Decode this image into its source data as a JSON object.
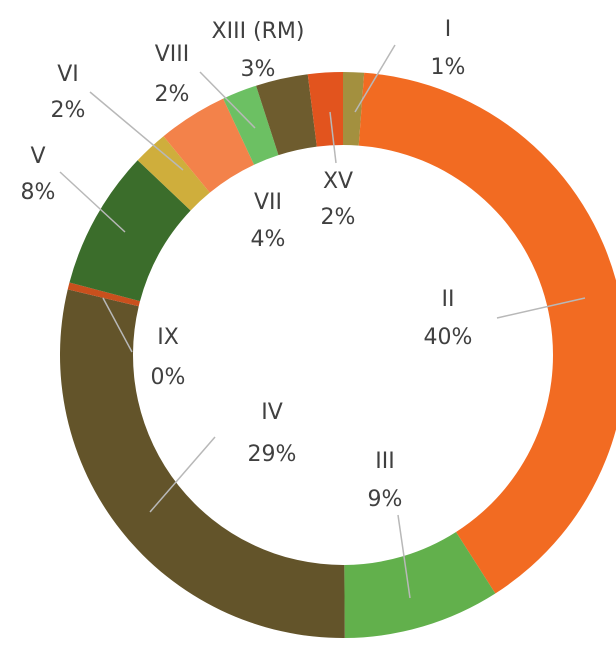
{
  "chart_data": {
    "type": "donut",
    "categories": [
      "I",
      "II",
      "III",
      "IV",
      "IX",
      "V",
      "VI",
      "VII",
      "VIII",
      "XIII (RM)",
      "XV"
    ],
    "values": [
      1.2,
      40,
      9,
      29,
      0.4,
      8,
      2,
      4,
      2,
      3,
      2
    ],
    "value_labels": [
      "1%",
      "40%",
      "9%",
      "29%",
      "0%",
      "8%",
      "2%",
      "4%",
      "2%",
      "3%",
      "2%"
    ],
    "colors": [
      "#a3903f",
      "#f26b22",
      "#62b04c",
      "#63542a",
      "#c9501d",
      "#3b6d2b",
      "#cfae3c",
      "#f3824a",
      "#6cc063",
      "#6e5c2e",
      "#e2541e"
    ]
  }
}
